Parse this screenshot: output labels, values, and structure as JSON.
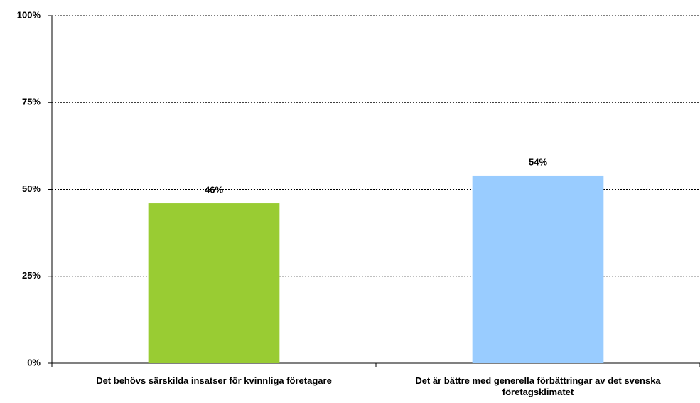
{
  "chart_data": {
    "type": "bar",
    "categories": [
      "Det behövs särskilda insatser för kvinnliga företagare",
      "Det är bättre med generella förbättringar av det svenska företagsklimatet"
    ],
    "values": [
      46,
      54
    ],
    "value_labels": [
      "46%",
      "54%"
    ],
    "colors": [
      "#99cc33",
      "#99ccff"
    ],
    "ylim": [
      0,
      100
    ],
    "yticks": [
      {
        "value": 0,
        "label": "0%"
      },
      {
        "value": 25,
        "label": "25%"
      },
      {
        "value": 50,
        "label": "50%"
      },
      {
        "value": 75,
        "label": "75%"
      },
      {
        "value": 100,
        "label": "100%"
      }
    ],
    "grid": true
  }
}
